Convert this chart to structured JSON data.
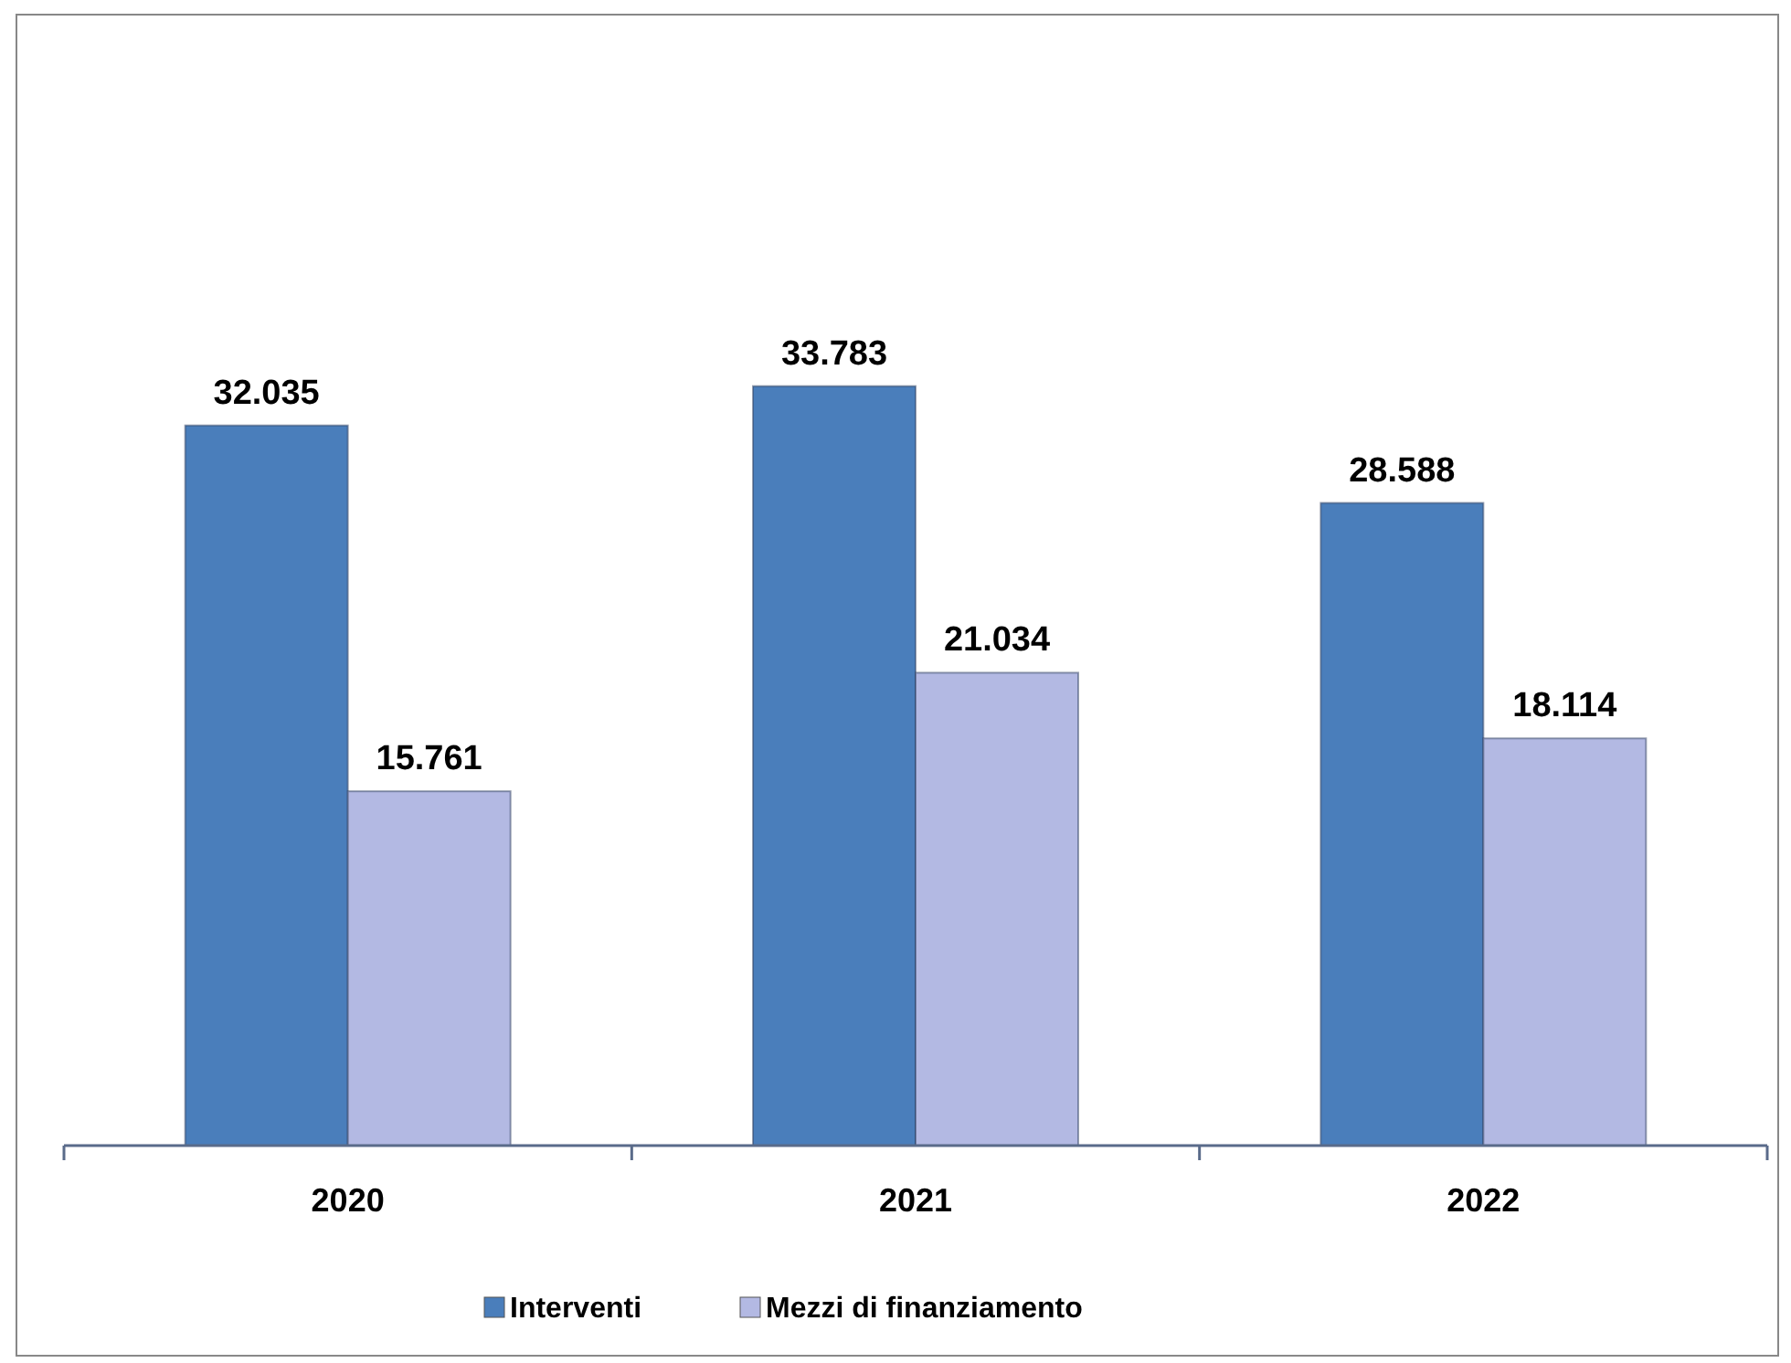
{
  "chart_data": {
    "type": "bar",
    "categories": [
      "2020",
      "2021",
      "2022"
    ],
    "series": [
      {
        "name": "Interventi",
        "color": "#4a7ebb",
        "values": [
          32035,
          33783,
          28588
        ],
        "value_labels": [
          "32.035",
          "33.783",
          "28.588"
        ]
      },
      {
        "name": "Mezzi di finanziamento",
        "color": "#b3b9e3",
        "values": [
          15761,
          21034,
          18114
        ],
        "value_labels": [
          "15.761",
          "21.034",
          "18.114"
        ]
      }
    ],
    "tick_labels": "x",
    "legend": "bottom"
  }
}
